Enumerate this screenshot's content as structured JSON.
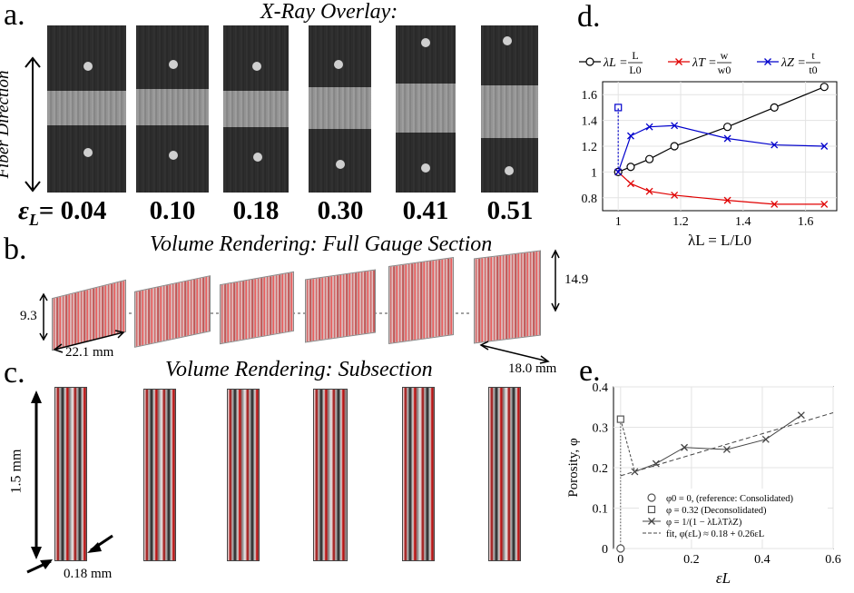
{
  "panels": {
    "a": {
      "letter": "a.",
      "title": "X-Ray Overlay:",
      "side_label": "Fiber Direction",
      "strain_symbol": "ε",
      "strain_subscript": "L",
      "strains": [
        "= 0.04",
        "0.10",
        "0.18",
        "0.30",
        "0.41",
        "0.51"
      ]
    },
    "b": {
      "letter": "b.",
      "title": "Volume Rendering: Full Gauge Section",
      "dims": {
        "height_left": "9.3",
        "width_left": "22.1 mm",
        "height_right": "14.9",
        "width_right": "18.0 mm"
      }
    },
    "c": {
      "letter": "c.",
      "title": "Volume Rendering: Subsection",
      "dims": {
        "height": "1.5 mm",
        "width": "0.18 mm"
      }
    },
    "d": {
      "letter": "d."
    },
    "e": {
      "letter": "e."
    }
  },
  "colors": {
    "black": "#000000",
    "red": "#e00000",
    "blue": "#0000cc"
  },
  "chart_data": [
    {
      "type": "line",
      "panel": "d",
      "xlabel": "λL = L/L0",
      "ylabel": "",
      "xlim": [
        0.95,
        1.7
      ],
      "ylim": [
        0.7,
        1.7
      ],
      "xticks": [
        "1",
        "1.2",
        "1.4",
        "1.6"
      ],
      "yticks": [
        "0.8",
        "1",
        "1.2",
        "1.4",
        "1.6"
      ],
      "grid": true,
      "legend": {
        "placement": "top",
        "entries": [
          {
            "lhs": "λL",
            "rhs_num": "L",
            "rhs_den": "L0"
          },
          {
            "lhs": "λT",
            "rhs_num": "w",
            "rhs_den": "w0"
          },
          {
            "lhs": "λZ",
            "rhs_num": "t",
            "rhs_den": "t0"
          }
        ]
      },
      "series": [
        {
          "name": "λL = L/L0",
          "marker": "circle",
          "color": "#000000",
          "x": [
            1.0,
            1.04,
            1.1,
            1.18,
            1.35,
            1.5,
            1.66
          ],
          "y": [
            1.0,
            1.04,
            1.1,
            1.2,
            1.35,
            1.5,
            1.66
          ]
        },
        {
          "name": "λT = w/w0",
          "marker": "x",
          "color": "#e00000",
          "x": [
            1.0,
            1.04,
            1.1,
            1.18,
            1.35,
            1.5,
            1.66
          ],
          "y": [
            1.0,
            0.91,
            0.85,
            0.82,
            0.78,
            0.75,
            0.75
          ]
        },
        {
          "name": "λZ = t/t0",
          "marker": "x",
          "color": "#0000cc",
          "x": [
            1.0,
            1.04,
            1.1,
            1.18,
            1.35,
            1.5,
            1.66
          ],
          "y": [
            1.0,
            1.28,
            1.35,
            1.36,
            1.26,
            1.21,
            1.2
          ]
        },
        {
          "name": "λZ (deconsolidated)",
          "marker": "square",
          "color": "#0000cc",
          "x": [
            1.0
          ],
          "y": [
            1.5
          ]
        }
      ]
    },
    {
      "type": "line",
      "panel": "e",
      "xlabel": "εL",
      "ylabel": "Porosity, φ",
      "xlim": [
        -0.02,
        0.6
      ],
      "ylim": [
        0,
        0.4
      ],
      "xticks": [
        "0",
        "0.2",
        "0.4",
        "0.6"
      ],
      "yticks": [
        "0",
        "0.1",
        "0.2",
        "0.3",
        "0.4"
      ],
      "grid": true,
      "legend": {
        "placement": "bottom-right",
        "entries": [
          "φ0 = 0, (reference: Consolidated)",
          "φ = 0.32 (Deconsolidated)",
          "φ = 1/(1 − λLλTλZ)",
          "fit, φ(εL) ≈ 0.18 + 0.26εL"
        ]
      },
      "series": [
        {
          "name": "reference consolidated",
          "marker": "circle",
          "x": [
            0
          ],
          "y": [
            0
          ]
        },
        {
          "name": "deconsolidated",
          "marker": "square",
          "x": [
            0
          ],
          "y": [
            0.32
          ]
        },
        {
          "name": "computed porosity",
          "marker": "x",
          "x": [
            0.04,
            0.1,
            0.18,
            0.3,
            0.41,
            0.51
          ],
          "y": [
            0.19,
            0.21,
            0.25,
            0.245,
            0.27,
            0.33
          ]
        },
        {
          "name": "fit",
          "style": "dashed",
          "x": [
            0,
            0.6
          ],
          "y": [
            0.18,
            0.336
          ]
        }
      ]
    }
  ]
}
